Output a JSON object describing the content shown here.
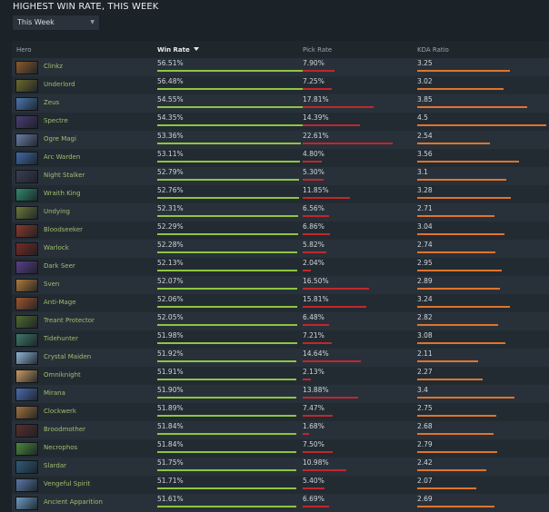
{
  "title": "HIGHEST WIN RATE, THIS WEEK",
  "filter": {
    "selected": "This Week",
    "icon": "dropdown-caret-icon"
  },
  "columns": {
    "hero": "Hero",
    "win_rate": "Win Rate",
    "pick_rate": "Pick Rate",
    "kda": "KDA Ratio"
  },
  "colors": {
    "win": "#8dc63f",
    "pick": "#c1272d",
    "kda": "#e0742c"
  },
  "rows": [
    {
      "hero": "Clinkz",
      "win": "56.51%",
      "pick": "7.90%",
      "kda": "3.25",
      "icon": "#8a5a2b"
    },
    {
      "hero": "Underlord",
      "win": "56.48%",
      "pick": "7.25%",
      "kda": "3.02",
      "icon": "#6b6a2c"
    },
    {
      "hero": "Zeus",
      "win": "54.55%",
      "pick": "17.81%",
      "kda": "3.85",
      "icon": "#4a78b0"
    },
    {
      "hero": "Spectre",
      "win": "54.35%",
      "pick": "14.39%",
      "kda": "4.5",
      "icon": "#4b3c73"
    },
    {
      "hero": "Ogre Magi",
      "win": "53.36%",
      "pick": "22.61%",
      "kda": "2.54",
      "icon": "#6a7fa6"
    },
    {
      "hero": "Arc Warden",
      "win": "53.11%",
      "pick": "4.80%",
      "kda": "3.56",
      "icon": "#3f6aa8"
    },
    {
      "hero": "Night Stalker",
      "win": "52.79%",
      "pick": "5.30%",
      "kda": "3.1",
      "icon": "#3a3f55"
    },
    {
      "hero": "Wraith King",
      "win": "52.76%",
      "pick": "11.85%",
      "kda": "3.28",
      "icon": "#2f8a6e"
    },
    {
      "hero": "Undying",
      "win": "52.31%",
      "pick": "6.56%",
      "kda": "2.71",
      "icon": "#6c7a3a"
    },
    {
      "hero": "Bloodseeker",
      "win": "52.29%",
      "pick": "6.86%",
      "kda": "3.04",
      "icon": "#8a3a2a"
    },
    {
      "hero": "Warlock",
      "win": "52.28%",
      "pick": "5.82%",
      "kda": "2.74",
      "icon": "#7a2a22"
    },
    {
      "hero": "Dark Seer",
      "win": "52.13%",
      "pick": "2.04%",
      "kda": "2.95",
      "icon": "#5a3f8a"
    },
    {
      "hero": "Sven",
      "win": "52.07%",
      "pick": "16.50%",
      "kda": "2.89",
      "icon": "#b07a3a"
    },
    {
      "hero": "Anti-Mage",
      "win": "52.06%",
      "pick": "15.81%",
      "kda": "3.24",
      "icon": "#a0552e"
    },
    {
      "hero": "Treant Protector",
      "win": "52.05%",
      "pick": "6.48%",
      "kda": "2.82",
      "icon": "#4f6b2f"
    },
    {
      "hero": "Tidehunter",
      "win": "51.98%",
      "pick": "7.21%",
      "kda": "3.08",
      "icon": "#3e7a6a"
    },
    {
      "hero": "Crystal Maiden",
      "win": "51.92%",
      "pick": "14.64%",
      "kda": "2.11",
      "icon": "#8fb6d8"
    },
    {
      "hero": "Omniknight",
      "win": "51.91%",
      "pick": "2.13%",
      "kda": "2.27",
      "icon": "#c99b62"
    },
    {
      "hero": "Mirana",
      "win": "51.90%",
      "pick": "13.88%",
      "kda": "3.4",
      "icon": "#4c6bb0"
    },
    {
      "hero": "Clockwerk",
      "win": "51.89%",
      "pick": "7.47%",
      "kda": "2.75",
      "icon": "#a3733c"
    },
    {
      "hero": "Broodmother",
      "win": "51.84%",
      "pick": "1.68%",
      "kda": "2.68",
      "icon": "#5a2e2e"
    },
    {
      "hero": "Necrophos",
      "win": "51.84%",
      "pick": "7.50%",
      "kda": "2.79",
      "icon": "#4c8a3a"
    },
    {
      "hero": "Slardar",
      "win": "51.75%",
      "pick": "10.98%",
      "kda": "2.42",
      "icon": "#2f5c7a"
    },
    {
      "hero": "Vengeful Spirit",
      "win": "51.71%",
      "pick": "5.40%",
      "kda": "2.07",
      "icon": "#5a79a8"
    },
    {
      "hero": "Ancient Apparition",
      "win": "51.61%",
      "pick": "6.69%",
      "kda": "2.69",
      "icon": "#6d9cc4"
    }
  ]
}
